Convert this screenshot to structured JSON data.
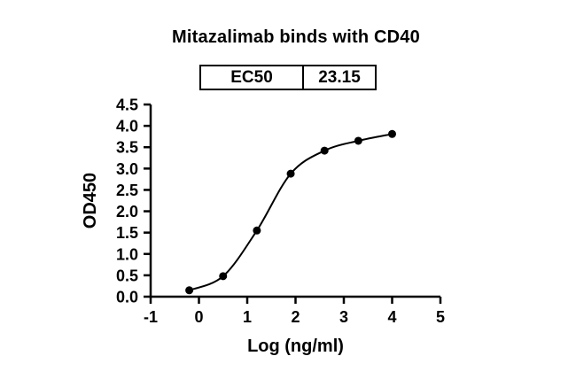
{
  "page": {
    "background": "#ffffff"
  },
  "header": {
    "title": "Mitazalimab binds with CD40"
  },
  "ec50_table": {
    "label": "EC50",
    "value": "23.15"
  },
  "chart_data": {
    "type": "scatter",
    "title": "Mitazalimab binds with CD40",
    "xlabel": "Log (ng/ml)",
    "ylabel": "OD450",
    "xlim": [
      -1,
      5
    ],
    "ylim": [
      0,
      4.5
    ],
    "x_ticks": [
      -1,
      0,
      1,
      2,
      3,
      4,
      5
    ],
    "x_tick_labels": [
      "-1",
      "0",
      "1",
      "2",
      "3",
      "4",
      "5"
    ],
    "y_ticks": [
      0,
      0.5,
      1,
      1.5,
      2,
      2.5,
      3,
      3.5,
      4,
      4.5
    ],
    "y_tick_labels": [
      "0.0",
      "0.5",
      "1.0",
      "1.5",
      "2.0",
      "2.5",
      "3.0",
      "3.5",
      "4.0",
      "4.5"
    ],
    "points": {
      "x": [
        -0.2,
        0.5,
        1.2,
        1.9,
        2.6,
        3.3,
        4.0
      ],
      "y": [
        0.15,
        0.48,
        1.55,
        2.88,
        3.42,
        3.65,
        3.81
      ]
    },
    "curve_style": "sigmoidal-4PL-fit-through-points",
    "ec50": 23.15,
    "marker_color": "#000000",
    "line_color": "#000000",
    "axis_color": "#000000",
    "grid": false,
    "legend_position": "none"
  }
}
